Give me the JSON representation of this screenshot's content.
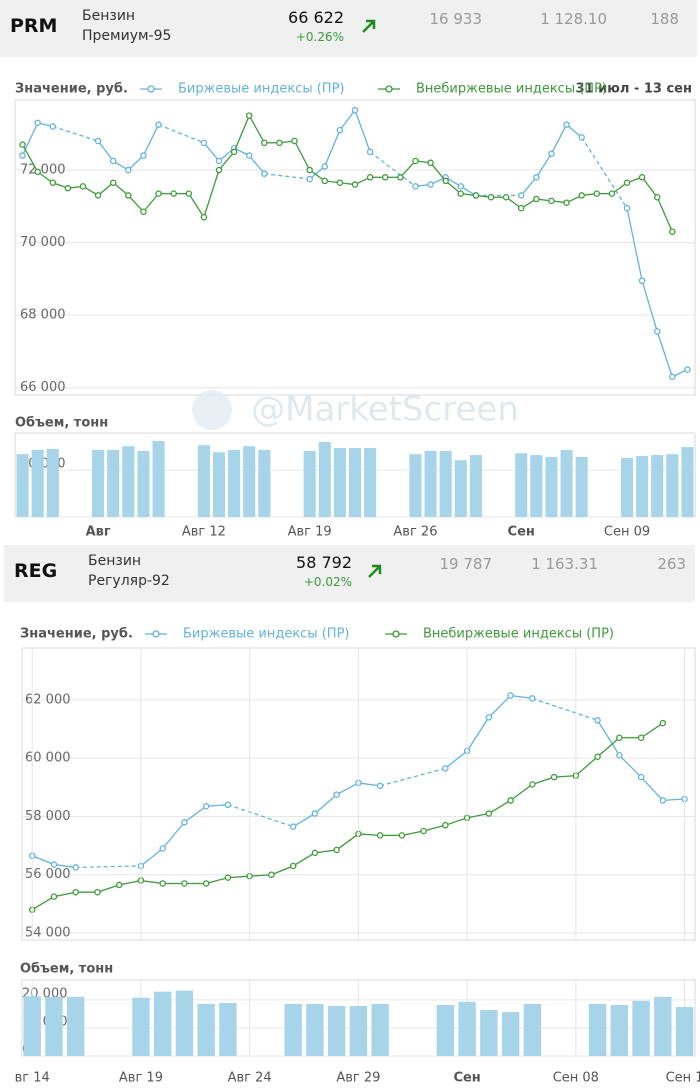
{
  "headers": [
    {
      "code": "PRM",
      "product": "Бензин",
      "grade": "Премиум-95",
      "price": "66 622",
      "change": "+0.26%",
      "volume": "16 933",
      "amount": "1 128.10",
      "deals": "188"
    },
    {
      "code": "REG",
      "product": "Бензин",
      "grade": "Регуляр-92",
      "price": "58 792",
      "change": "+0.02%",
      "volume": "19 787",
      "amount": "1 163.31",
      "deals": "263"
    }
  ],
  "watermark": "@MarketScreen",
  "chart_data": [
    {
      "type": "line",
      "title": "Значение, руб.",
      "subtitle": "31 июл - 13 сен",
      "xlim": [
        -5.5,
        39.5
      ],
      "ylim": [
        65800,
        73930
      ],
      "yticks": [
        {
          "value": 66000,
          "label": "66 000"
        },
        {
          "value": 68000,
          "label": "68 000"
        },
        {
          "value": 70000,
          "label": "70 000"
        },
        {
          "value": 72000,
          "label": "72 000"
        }
      ],
      "grid": true,
      "xgrid": false,
      "series": [
        {
          "name": "Биржевые индексы (ПР)",
          "color": "#62b3db",
          "x": [
            -5,
            -4,
            -3,
            0,
            1,
            2,
            3,
            4,
            7,
            8,
            9,
            10,
            11,
            14,
            15,
            16,
            17,
            18,
            21,
            22,
            23,
            24,
            25,
            28,
            29,
            30,
            31,
            32,
            35,
            36,
            37,
            38,
            39
          ],
          "values": [
            72400,
            73300,
            73200,
            72800,
            72250,
            72000,
            72400,
            73250,
            72750,
            72250,
            72600,
            72400,
            71900,
            71750,
            72100,
            73100,
            73650,
            72500,
            71550,
            71600,
            71800,
            71550,
            71300,
            71300,
            71800,
            72450,
            73250,
            72900,
            70950,
            68950,
            67550,
            66300,
            66500
          ]
        },
        {
          "name": "Внебиржевые индексы (ПР)",
          "color": "#3e9a3a",
          "x": [
            -5,
            -4,
            -3,
            -2,
            -1,
            0,
            1,
            2,
            3,
            4,
            5,
            6,
            7,
            8,
            9,
            10,
            11,
            12,
            13,
            14,
            15,
            16,
            17,
            18,
            19,
            20,
            21,
            22,
            23,
            24,
            25,
            26,
            27,
            28,
            29,
            30,
            31,
            32,
            33,
            34,
            35,
            36,
            37,
            38
          ],
          "values": [
            72700,
            71950,
            71650,
            71500,
            71550,
            71300,
            71650,
            71300,
            70850,
            71350,
            71350,
            71350,
            70700,
            72000,
            72500,
            73500,
            72750,
            72750,
            72800,
            72000,
            71700,
            71650,
            71600,
            71800,
            71800,
            71800,
            72250,
            72200,
            71700,
            71350,
            71300,
            71250,
            71250,
            70950,
            71200,
            71150,
            71100,
            71300,
            71350,
            71350,
            71650,
            71800,
            71250,
            70300
          ]
        }
      ]
    },
    {
      "type": "bar",
      "title": "Объем, тонн",
      "color": "#a8d4ea",
      "xlim": [
        -5.5,
        39.5
      ],
      "ylim": [
        0,
        17900
      ],
      "yticks": [
        0,
        {
          "value": 10000,
          "label": "10 000"
        }
      ],
      "grid": true,
      "xgrid": false,
      "xticks": [
        {
          "value": 0,
          "label": "Авг"
        },
        {
          "value": 7,
          "label": "Авг 12"
        },
        {
          "value": 14,
          "label": "Авг 19"
        },
        {
          "value": 21,
          "label": "Авг 26"
        },
        {
          "value": 28,
          "label": "Сен"
        },
        {
          "value": 35,
          "label": "Сен 09"
        }
      ],
      "x": [
        -5,
        -4,
        -3,
        0,
        1,
        2,
        3,
        4,
        7,
        8,
        9,
        10,
        11,
        14,
        15,
        16,
        17,
        18,
        21,
        22,
        23,
        24,
        25,
        28,
        29,
        30,
        31,
        32,
        35,
        36,
        37,
        38,
        39
      ],
      "values": [
        13400,
        14300,
        14500,
        14300,
        14300,
        15100,
        14100,
        16200,
        15300,
        13800,
        14300,
        15100,
        14300,
        14100,
        16000,
        14700,
        14700,
        14700,
        13400,
        14100,
        14100,
        12100,
        13200,
        13600,
        13200,
        12800,
        14300,
        12800,
        12600,
        13000,
        13200,
        13400,
        14900
      ]
    },
    {
      "type": "line",
      "title": "Значение, руб.",
      "xlim": [
        -0.47,
        30.48
      ],
      "ylim": [
        53760,
        63780
      ],
      "yticks": [
        {
          "value": 54000,
          "label": "54 000"
        },
        {
          "value": 56000,
          "label": "56 000"
        },
        {
          "value": 58000,
          "label": "58 000"
        },
        {
          "value": 60000,
          "label": "60 000"
        },
        {
          "value": 62000,
          "label": "62 000"
        }
      ],
      "grid": true,
      "xgrid": true,
      "series": [
        {
          "name": "Биржевые индексы (ПР)",
          "color": "#62b3db",
          "x": [
            0,
            1,
            2,
            5,
            6,
            7,
            8,
            9,
            12,
            13,
            14,
            15,
            16,
            19,
            20,
            21,
            22,
            23,
            26,
            27,
            28,
            29,
            30
          ],
          "values": [
            56650,
            56350,
            56250,
            56300,
            56900,
            57800,
            58350,
            58400,
            57650,
            58100,
            58750,
            59150,
            59050,
            59650,
            60250,
            61400,
            62150,
            62050,
            61300,
            60100,
            59350,
            58550,
            58600
          ]
        },
        {
          "name": "Внебиржевые индексы (ПР)",
          "color": "#3e9a3a",
          "x": [
            0,
            1,
            2,
            3,
            4,
            5,
            6,
            7,
            8,
            9,
            10,
            11,
            12,
            13,
            14,
            15,
            16,
            17,
            18,
            19,
            20,
            21,
            22,
            23,
            24,
            25,
            26,
            27,
            28,
            29
          ],
          "values": [
            54800,
            55250,
            55400,
            55400,
            55650,
            55800,
            55700,
            55700,
            55700,
            55900,
            55950,
            56000,
            56300,
            56750,
            56850,
            57400,
            57350,
            57350,
            57500,
            57700,
            57950,
            58100,
            58550,
            59100,
            59350,
            59400,
            60050,
            60700,
            60700,
            61200
          ]
        }
      ]
    },
    {
      "type": "bar",
      "title": "Объем, тонн",
      "color": "#a8d4ea",
      "xlim": [
        -0.47,
        30.48
      ],
      "ylim": [
        0,
        27100
      ],
      "yticks": [
        0,
        {
          "value": 10000,
          "label": "10 000"
        },
        {
          "value": 20000,
          "label": "20 000"
        }
      ],
      "grid": true,
      "xgrid": true,
      "xticks": [
        {
          "value": 0,
          "label": "вг 14"
        },
        {
          "value": 5,
          "label": "Авг 19"
        },
        {
          "value": 10,
          "label": "Авг 24"
        },
        {
          "value": 15,
          "label": "Авг 29"
        },
        {
          "value": 20,
          "label": "Сен"
        },
        {
          "value": 25,
          "label": "Сен 08"
        },
        {
          "value": 30,
          "label": "Сен 1"
        }
      ],
      "x": [
        0,
        1,
        2,
        5,
        6,
        7,
        8,
        9,
        12,
        13,
        14,
        15,
        16,
        19,
        20,
        21,
        22,
        23,
        26,
        27,
        28,
        29,
        30
      ],
      "values": [
        21300,
        21100,
        21100,
        20750,
        22950,
        23300,
        18550,
        18900,
        18550,
        18550,
        17850,
        17850,
        18550,
        18200,
        19300,
        16400,
        15650,
        18550,
        18550,
        18200,
        19650,
        21100,
        17450
      ]
    }
  ]
}
